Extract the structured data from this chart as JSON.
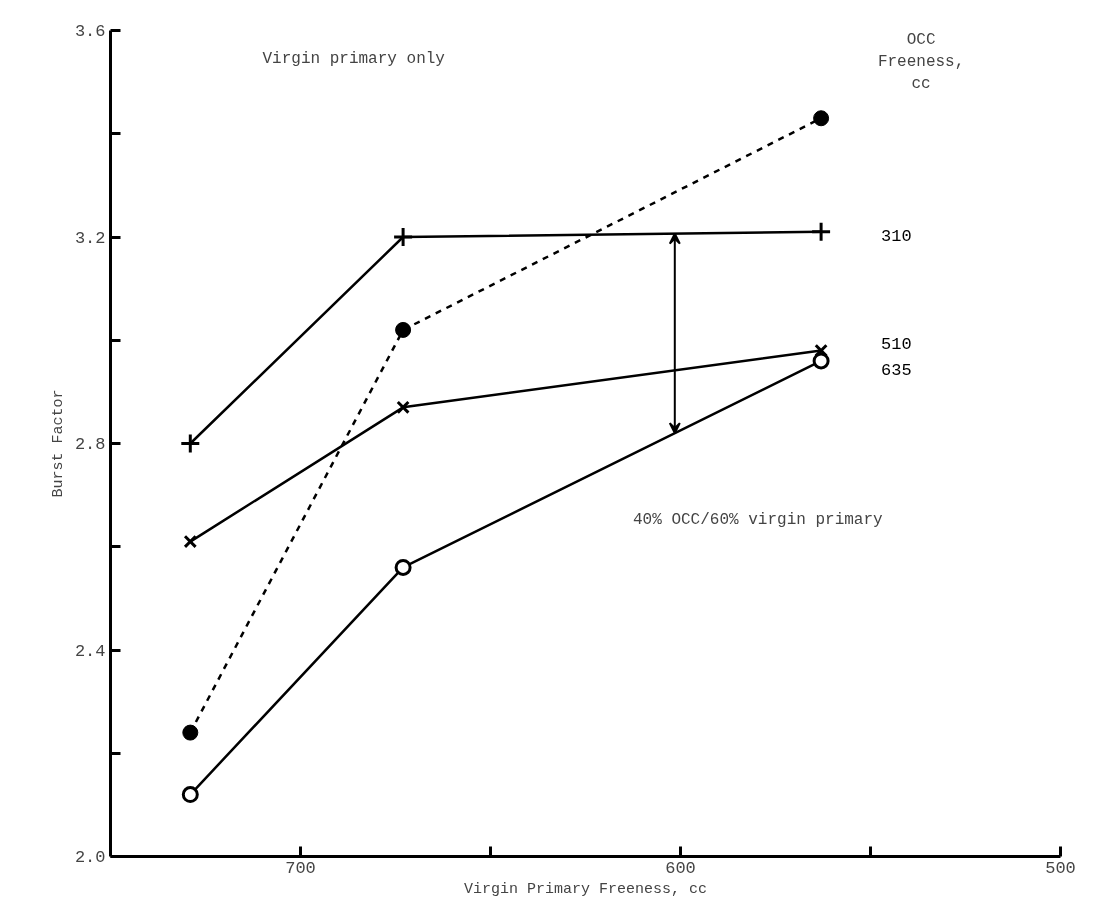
{
  "chart_data": {
    "type": "line",
    "xlabel": "Virgin Primary Freeness, cc",
    "ylabel": "Burst Factor",
    "legend_title": "OCC Freeness, cc",
    "x": [
      729,
      673,
      563
    ],
    "xlim": [
      750,
      500
    ],
    "xticks": [
      700,
      {
        "value": 650,
        "label": null
      },
      600,
      {
        "value": 550,
        "label": null
      },
      500
    ],
    "ylim": [
      2.0,
      3.6
    ],
    "yticks": [
      {
        "value": 2.0,
        "label": "2.0"
      },
      {
        "value": 2.2,
        "label": null
      },
      2.4,
      {
        "value": 2.6,
        "label": null
      },
      2.8,
      {
        "value": 3.0,
        "label": null
      },
      3.2,
      {
        "value": 3.4,
        "label": null
      },
      3.6
    ],
    "grid": false,
    "series": [
      {
        "name": "310",
        "color": "#000000",
        "marker": "cross",
        "line_style": "solid",
        "values": [
          2.8,
          3.2,
          3.21
        ]
      },
      {
        "name": "510",
        "color": "#000000",
        "marker": "x",
        "line_style": "solid",
        "values": [
          2.61,
          2.87,
          2.98
        ]
      },
      {
        "name": "635",
        "color": "#000000",
        "marker": "circle",
        "line_style": "solid",
        "values": [
          2.12,
          2.56,
          2.96
        ]
      },
      {
        "color": "#000000",
        "marker": "dot",
        "line_style": "dashed",
        "values": [
          2.24,
          3.02,
          3.43
        ]
      }
    ],
    "annotations": [
      "Virgin primary only",
      "40% OCC/60% virgin primary"
    ]
  }
}
